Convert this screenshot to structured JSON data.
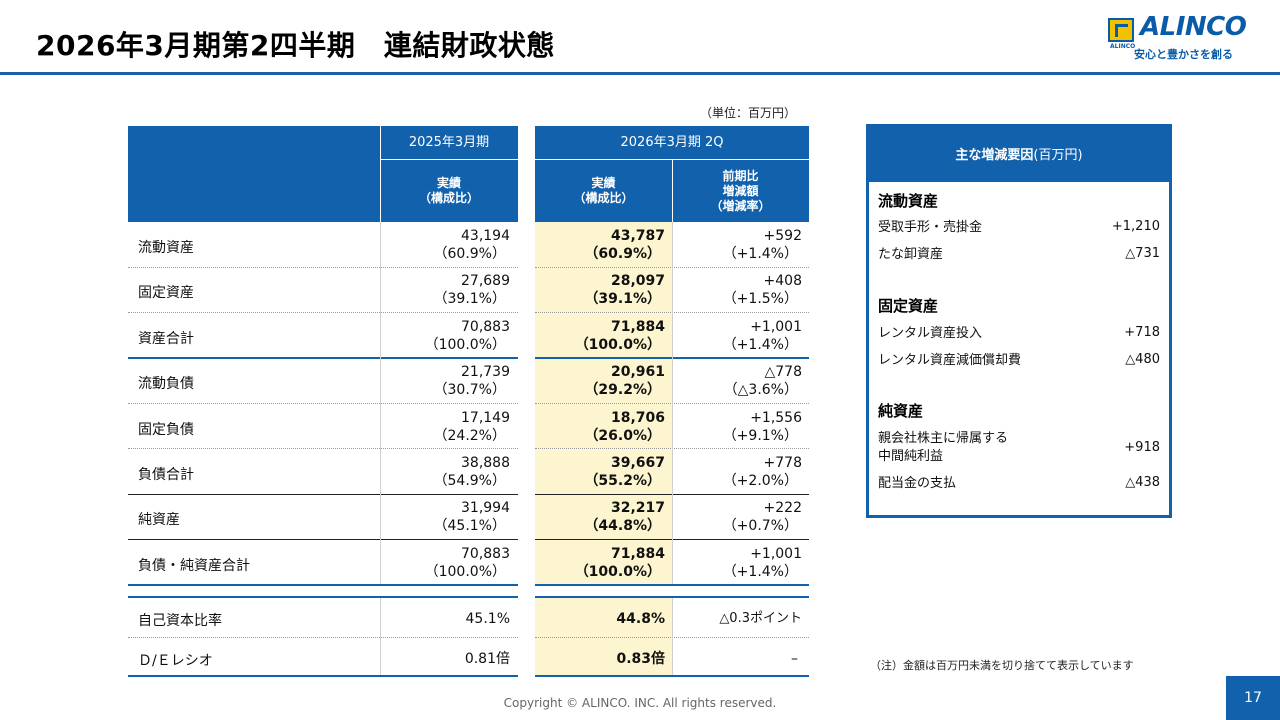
{
  "header": {
    "title": "2026年3月期第2四半期　連結財政状態",
    "logo_word": "ALINCO",
    "logo_small": "ALINCO",
    "logo_tagline": "安心と豊かさを創る"
  },
  "unit": "（単位：百万円）",
  "table": {
    "col_headers": {
      "prev_period": "2025年3月期",
      "curr_period": "2026年3月期 2Q",
      "prev_actual": "実績\n（構成比）",
      "curr_actual": "実績\n（構成比）",
      "yoy": "前期比\n増減額\n（増減率）"
    },
    "rows": [
      {
        "label": "流動資産",
        "prev": "43,194",
        "prev_ratio": "（60.9%）",
        "curr": "43,787",
        "curr_ratio": "（60.9%）",
        "chg": "+592",
        "chg_rate": "（+1.4%）"
      },
      {
        "label": "固定資産",
        "prev": "27,689",
        "prev_ratio": "（39.1%）",
        "curr": "28,097",
        "curr_ratio": "（39.1%）",
        "chg": "+408",
        "chg_rate": "（+1.5%）"
      },
      {
        "label": "資産合計",
        "prev": "70,883",
        "prev_ratio": "（100.0%）",
        "curr": "71,884",
        "curr_ratio": "（100.0%）",
        "chg": "+1,001",
        "chg_rate": "（+1.4%）"
      },
      {
        "label": "流動負債",
        "prev": "21,739",
        "prev_ratio": "（30.7%）",
        "curr": "20,961",
        "curr_ratio": "（29.2%）",
        "chg": "△778",
        "chg_rate": "（△3.6%）"
      },
      {
        "label": "固定負債",
        "prev": "17,149",
        "prev_ratio": "（24.2%）",
        "curr": "18,706",
        "curr_ratio": "（26.0%）",
        "chg": "+1,556",
        "chg_rate": "（+9.1%）"
      },
      {
        "label": "負債合計",
        "prev": "38,888",
        "prev_ratio": "（54.9%）",
        "curr": "39,667",
        "curr_ratio": "（55.2%）",
        "chg": "+778",
        "chg_rate": "（+2.0%）"
      },
      {
        "label": "純資産",
        "prev": "31,994",
        "prev_ratio": "（45.1%）",
        "curr": "32,217",
        "curr_ratio": "（44.8%）",
        "chg": "+222",
        "chg_rate": "（+0.7%）"
      },
      {
        "label": "負債・純資産合計",
        "prev": "70,883",
        "prev_ratio": "（100.0%）",
        "curr": "71,884",
        "curr_ratio": "（100.0%）",
        "chg": "+1,001",
        "chg_rate": "（+1.4%）"
      }
    ],
    "ratios": [
      {
        "label": "自己資本比率",
        "prev": "45.1%",
        "curr": "44.8%",
        "chg": "△0.3ポイント"
      },
      {
        "label": "Ｄ/Ｅレシオ",
        "prev": "0.81倍",
        "curr": "0.83倍",
        "chg": "–"
      }
    ]
  },
  "factors": {
    "title_bold": "主な増減要因",
    "title_unit": "(百万円)",
    "sections": [
      {
        "name": "流動資産",
        "items": [
          {
            "label": "受取手形・売掛金",
            "value": "+1,210"
          },
          {
            "label": "たな卸資産",
            "value": "△731"
          }
        ]
      },
      {
        "name": "固定資産",
        "items": [
          {
            "label": "レンタル資産投入",
            "value": "+718"
          },
          {
            "label": "レンタル資産減価償却費",
            "value": "△480"
          }
        ]
      },
      {
        "name": "純資産",
        "items": [
          {
            "label": "親会社株主に帰属する\n中間純利益",
            "value": "+918"
          },
          {
            "label": "配当金の支払",
            "value": "△438"
          }
        ]
      }
    ]
  },
  "note": "（注）金額は百万円未満を切り捨てて表示しています",
  "copyright": "Copyright © ALINCO. INC. All rights reserved.",
  "page_number": "17"
}
